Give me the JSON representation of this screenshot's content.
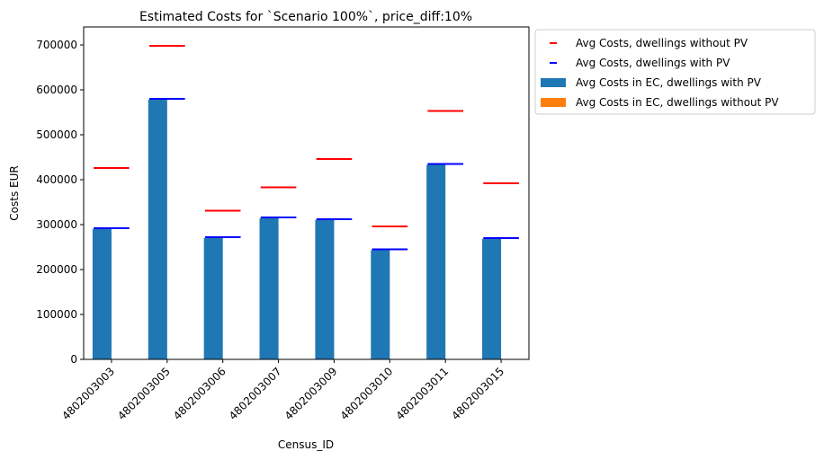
{
  "chart_data": {
    "type": "bar",
    "title": "Estimated Costs for `Scenario 100%`, price_diff:10%",
    "xlabel": "Census_ID",
    "ylabel": "Costs EUR",
    "categories": [
      "4802003003",
      "4802003005",
      "4802003006",
      "4802003007",
      "4802003009",
      "4802003010",
      "4802003011",
      "4802003015"
    ],
    "ylim": [
      0,
      740000
    ],
    "yticks": [
      0,
      100000,
      200000,
      300000,
      400000,
      500000,
      600000,
      700000
    ],
    "ytick_labels": [
      "0",
      "100000",
      "200000",
      "300000",
      "400000",
      "500000",
      "600000",
      "700000"
    ],
    "grid": false,
    "legend_position": "outside-right",
    "series": [
      {
        "name": "Avg Costs in EC, dwellings with PV",
        "kind": "bar",
        "color": "#1f77b4",
        "values": [
          290000,
          578000,
          270000,
          314000,
          310000,
          243000,
          433000,
          268000
        ]
      },
      {
        "name": "Avg Costs in EC, dwellings without PV",
        "kind": "bar",
        "color": "#ff7f0e",
        "values": [
          0,
          0,
          0,
          0,
          0,
          0,
          0,
          0
        ]
      },
      {
        "name": "Avg Costs, dwellings without PV",
        "kind": "hline",
        "color": "#ff0000",
        "values": [
          426000,
          698000,
          331000,
          383000,
          446000,
          296000,
          553000,
          392000
        ]
      },
      {
        "name": "Avg Costs, dwellings with PV",
        "kind": "hline",
        "color": "#0000ff",
        "values": [
          292000,
          580000,
          272000,
          316000,
          312000,
          245000,
          435000,
          270000
        ]
      }
    ],
    "legend": [
      {
        "label": "Avg Costs, dwellings without PV",
        "marker": "line",
        "color": "#ff0000"
      },
      {
        "label": "Avg Costs, dwellings with PV",
        "marker": "line",
        "color": "#0000ff"
      },
      {
        "label": "Avg Costs in EC, dwellings with PV",
        "marker": "patch",
        "color": "#1f77b4"
      },
      {
        "label": "Avg Costs in EC, dwellings without PV",
        "marker": "patch",
        "color": "#ff7f0e"
      }
    ]
  }
}
